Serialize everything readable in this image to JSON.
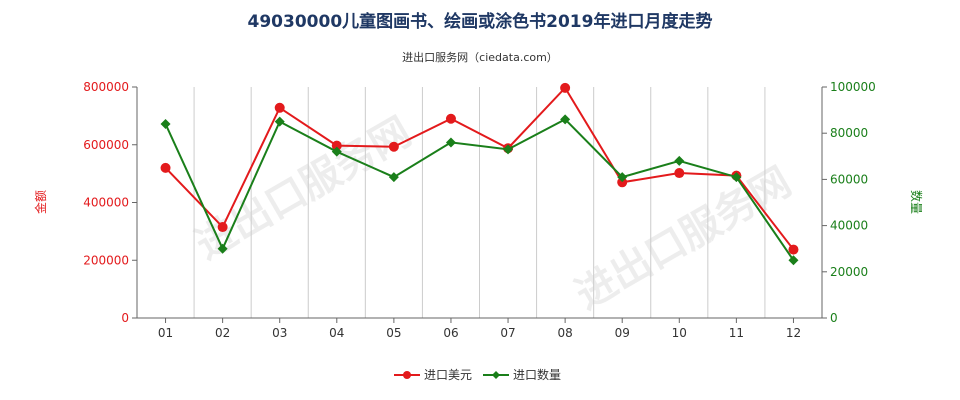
{
  "chart_data": {
    "type": "line",
    "title": "49030000儿童图画书、绘画或涂色书2019年进口月度走势",
    "subtitle": "进出口服务网（ciedata.com）",
    "categories": [
      "01",
      "02",
      "03",
      "04",
      "05",
      "06",
      "07",
      "08",
      "09",
      "10",
      "11",
      "12"
    ],
    "y_left_label": "金额",
    "y_right_label": "数量",
    "y_left_ticks": [
      "0",
      "200000",
      "400000",
      "600000",
      "800000"
    ],
    "y_right_ticks": [
      "0",
      "20000",
      "40000",
      "60000",
      "80000",
      "100000"
    ],
    "y_left_lim": [
      0,
      800000
    ],
    "y_right_lim": [
      0,
      100000
    ],
    "series": [
      {
        "name": "进口美元",
        "axis": "left",
        "color": "#e31a1c",
        "marker": "circle",
        "values": [
          520000,
          315000,
          728000,
          597000,
          593000,
          690000,
          588000,
          797000,
          470000,
          502000,
          493000,
          237000
        ]
      },
      {
        "name": "进口数量",
        "axis": "right",
        "color": "#1a7f1a",
        "marker": "diamond",
        "values": [
          84000,
          30000,
          85000,
          72000,
          61000,
          76000,
          73000,
          86000,
          61000,
          68000,
          61000,
          25000
        ]
      }
    ],
    "legend_position": "bottom-center",
    "grid": "vertical"
  },
  "colors": {
    "left_axis": "#e31a1c",
    "right_axis": "#1a7f1a",
    "grid": "#cccccc",
    "axis": "#666666"
  },
  "watermark": [
    "进出口服务网",
    "进出口服务网"
  ]
}
